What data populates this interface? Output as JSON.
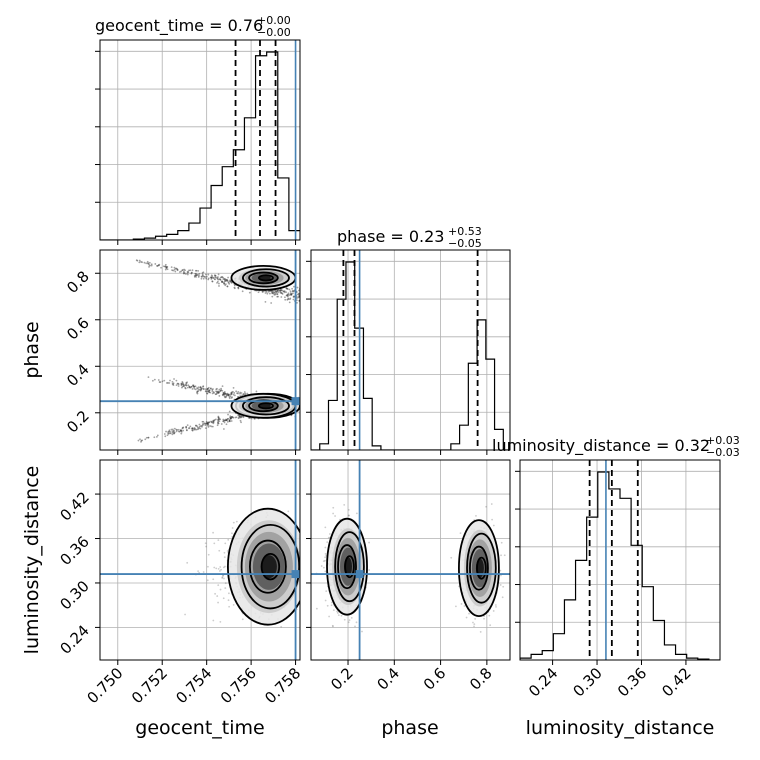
{
  "colors": {
    "truth": "#4682b4",
    "hist": "#000000",
    "grid": "#b0b0b0",
    "scatter": "#6f6f6f"
  },
  "chart_data": {
    "type": "corner",
    "parameters": [
      "geocent_time",
      "phase",
      "luminosity_distance"
    ],
    "truths": {
      "geocent_time": 0.758,
      "phase": 0.25,
      "luminosity_distance": 0.312
    },
    "titles": [
      {
        "param": "geocent_time",
        "label": "geocent_time = 0.76",
        "plus": "+0.00",
        "minus": "−0.00"
      },
      {
        "param": "phase",
        "label": "phase = 0.23",
        "plus": "+0.53",
        "minus": "−0.05"
      },
      {
        "param": "luminosity_distance",
        "label": "luminosity_distance = 0.32",
        "plus": "+0.03",
        "minus": "−0.03"
      }
    ],
    "axis_labels": {
      "geocent_time": "geocent_time",
      "phase": "phase",
      "luminosity_distance": "luminosity_distance"
    },
    "ranges": {
      "geocent_time": [
        0.7492,
        0.7582
      ],
      "phase": [
        0.04,
        0.9
      ],
      "luminosity_distance": [
        0.196,
        0.466
      ]
    },
    "ticks": {
      "geocent_time": {
        "values": [
          0.75,
          0.752,
          0.754,
          0.756,
          0.758
        ],
        "labels": [
          "0.750",
          "0.752",
          "0.754",
          "0.756",
          "0.758"
        ]
      },
      "phase": {
        "values": [
          0.2,
          0.4,
          0.6,
          0.8
        ],
        "labels": [
          "0.2",
          "0.4",
          "0.6",
          "0.8"
        ]
      },
      "luminosity_distance": {
        "values": [
          0.24,
          0.3,
          0.36,
          0.42
        ],
        "labels": [
          "0.24",
          "0.30",
          "0.36",
          "0.42"
        ]
      }
    },
    "histograms": {
      "geocent_time": {
        "bin_edges": [
          0.7492,
          0.7497,
          0.7502,
          0.7507,
          0.7512,
          0.7517,
          0.7522,
          0.7527,
          0.7532,
          0.7537,
          0.7542,
          0.7547,
          0.7552,
          0.7557,
          0.7562,
          0.7567,
          0.7572,
          0.7577,
          0.7582
        ],
        "counts": [
          0,
          0,
          0,
          0.005,
          0.01,
          0.02,
          0.03,
          0.05,
          0.09,
          0.17,
          0.29,
          0.39,
          0.48,
          0.65,
          0.98,
          1.0,
          0.33,
          0.05
        ],
        "quantiles": [
          0.7553,
          0.7564,
          0.7571
        ]
      },
      "phase": {
        "bin_edges": [
          0.04,
          0.0778,
          0.1156,
          0.1533,
          0.1911,
          0.2289,
          0.2667,
          0.3044,
          0.3422,
          0.38,
          0.4178,
          0.4556,
          0.4933,
          0.5311,
          0.5689,
          0.6067,
          0.6444,
          0.6822,
          0.72,
          0.7578,
          0.7956,
          0.8333,
          0.8711,
          0.9089
        ],
        "counts": [
          0,
          0.03,
          0.24,
          0.73,
          0.91,
          0.59,
          0.25,
          0.02,
          0,
          0,
          0,
          0,
          0,
          0,
          0,
          0,
          0.03,
          0.12,
          0.42,
          0.63,
          0.44,
          0.1,
          0
        ],
        "quantiles": [
          0.18,
          0.228,
          0.76
        ]
      },
      "luminosity_distance": {
        "bin_edges": [
          0.196,
          0.211,
          0.226,
          0.241,
          0.256,
          0.271,
          0.286,
          0.301,
          0.316,
          0.331,
          0.346,
          0.361,
          0.376,
          0.391,
          0.406,
          0.421,
          0.436,
          0.451,
          0.466
        ],
        "counts": [
          0.01,
          0.03,
          0.05,
          0.14,
          0.32,
          0.53,
          0.76,
          1.0,
          0.91,
          0.86,
          0.61,
          0.39,
          0.21,
          0.08,
          0.03,
          0.01,
          0.005,
          0
        ],
        "quantiles": [
          0.29,
          0.32,
          0.355
        ]
      }
    },
    "clusters_2d": {
      "phase_vs_geocent_time": [
        {
          "x": [
            0.7505,
            0.7582
          ],
          "y": [
            0.86,
            0.7
          ],
          "peak": [
            0.7566,
            0.78
          ]
        },
        {
          "x": [
            0.7505,
            0.7582
          ],
          "y": [
            0.07,
            0.25
          ],
          "peak": [
            0.7568,
            0.23
          ]
        },
        {
          "x": [
            0.7512,
            0.7582
          ],
          "y": [
            0.35,
            0.22
          ],
          "peak": [
            0.7566,
            0.23
          ]
        }
      ],
      "luminosity_distance_vs_geocent_time": [
        {
          "center": [
            0.7565,
            0.32
          ],
          "peak": [
            0.7568,
            0.322
          ]
        }
      ],
      "luminosity_distance_vs_phase": [
        {
          "center": [
            0.18,
            0.32
          ],
          "peak": [
            0.2,
            0.322
          ]
        },
        {
          "center": [
            0.77,
            0.32
          ],
          "peak": [
            0.77,
            0.32
          ]
        }
      ]
    },
    "grid": true
  }
}
